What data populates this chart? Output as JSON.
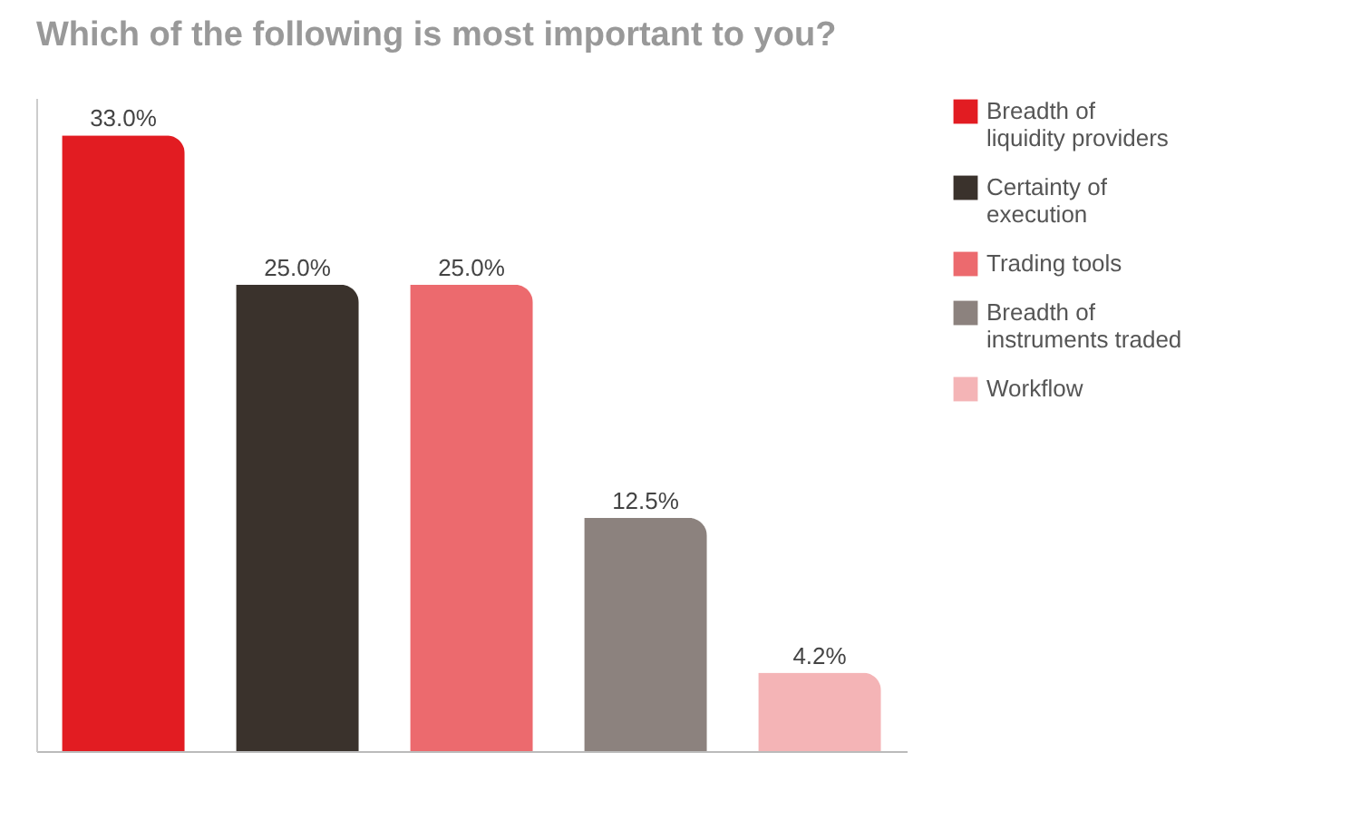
{
  "chart_data": {
    "type": "bar",
    "title": "Which of the following is most important to you?",
    "categories": [
      null,
      null,
      null,
      null,
      null
    ],
    "series": [
      {
        "name": "Breadth of liquidity providers",
        "color": "#e21c22",
        "values": [
          33.0,
          null,
          null,
          null,
          null
        ],
        "value_labels": [
          "33.0%",
          null,
          null,
          null,
          null
        ]
      },
      {
        "name": "Certainty of execution",
        "color": "#3a322c",
        "values": [
          null,
          25.0,
          null,
          null,
          null
        ],
        "value_labels": [
          null,
          "25.0%",
          null,
          null,
          null
        ]
      },
      {
        "name": "Trading tools",
        "color": "#ec6a6e",
        "values": [
          null,
          null,
          25.0,
          null,
          null
        ],
        "value_labels": [
          null,
          null,
          "25.0%",
          null,
          null
        ]
      },
      {
        "name": "Breadth of instruments traded",
        "color": "#8c827e",
        "values": [
          null,
          null,
          null,
          12.5,
          null
        ],
        "value_labels": [
          null,
          null,
          null,
          "12.5%",
          null
        ]
      },
      {
        "name": "Workflow",
        "color": "#f4b4b6",
        "values": [
          null,
          null,
          null,
          null,
          4.2
        ],
        "value_labels": [
          null,
          null,
          null,
          null,
          "4.2%"
        ]
      }
    ],
    "stacked": true,
    "legend": "right",
    "tick_labels": false,
    "grid": false
  }
}
